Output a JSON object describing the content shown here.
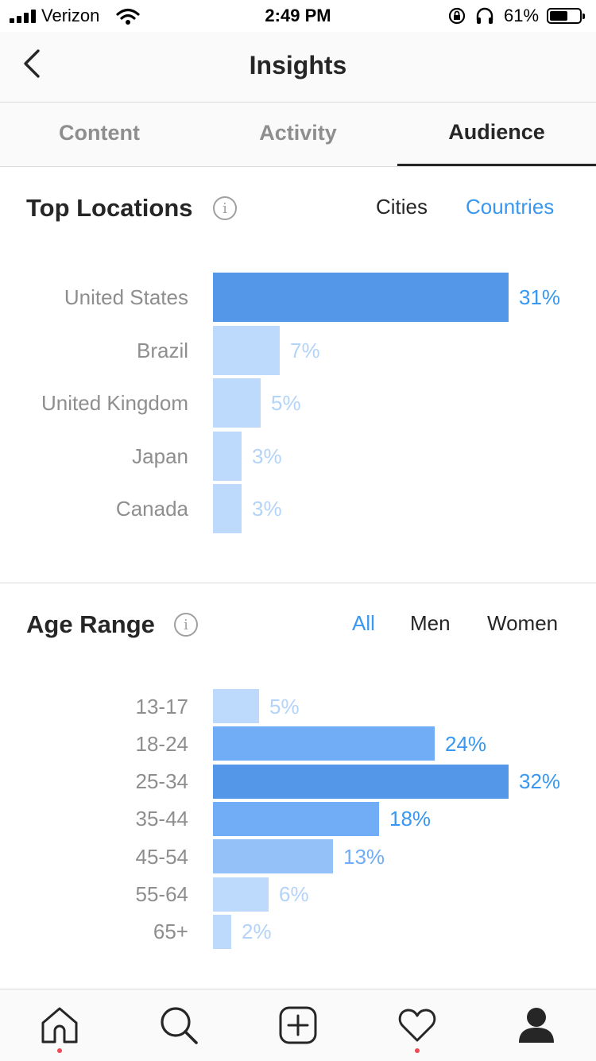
{
  "status_bar": {
    "carrier": "Verizon",
    "time": "2:49 PM",
    "battery_pct": "61%",
    "battery_level": 0.61,
    "icons": [
      "signal-icon",
      "wifi-icon",
      "rotation-lock-icon",
      "headphones-icon",
      "battery-icon"
    ]
  },
  "header": {
    "title": "Insights",
    "back_icon": "chevron-left-icon"
  },
  "tabs": [
    {
      "label": "Content",
      "active": false
    },
    {
      "label": "Activity",
      "active": false
    },
    {
      "label": "Audience",
      "active": true
    }
  ],
  "top_locations": {
    "title": "Top Locations",
    "info_glyph": "i",
    "filters": [
      {
        "label": "Cities",
        "selected": false
      },
      {
        "label": "Countries",
        "selected": true
      }
    ],
    "rows": [
      {
        "label": "United States",
        "pct_label": "31%",
        "value": 31
      },
      {
        "label": "Brazil",
        "pct_label": "7%",
        "value": 7
      },
      {
        "label": "United Kingdom",
        "pct_label": "5%",
        "value": 5
      },
      {
        "label": "Japan",
        "pct_label": "3%",
        "value": 3
      },
      {
        "label": "Canada",
        "pct_label": "3%",
        "value": 3
      }
    ]
  },
  "age_range": {
    "title": "Age Range",
    "info_glyph": "i",
    "filters": [
      {
        "label": "All",
        "selected": true
      },
      {
        "label": "Men",
        "selected": false
      },
      {
        "label": "Women",
        "selected": false
      }
    ],
    "rows": [
      {
        "label": "13-17",
        "pct_label": "5%",
        "value": 5
      },
      {
        "label": "18-24",
        "pct_label": "24%",
        "value": 24
      },
      {
        "label": "25-34",
        "pct_label": "32%",
        "value": 32
      },
      {
        "label": "35-44",
        "pct_label": "18%",
        "value": 18
      },
      {
        "label": "45-54",
        "pct_label": "13%",
        "value": 13
      },
      {
        "label": "55-64",
        "pct_label": "6%",
        "value": 6
      },
      {
        "label": "65+",
        "pct_label": "2%",
        "value": 2
      }
    ]
  },
  "bottom_nav": [
    {
      "icon": "home-icon",
      "notification_dot": true
    },
    {
      "icon": "search-icon",
      "notification_dot": false
    },
    {
      "icon": "add-post-icon",
      "notification_dot": false
    },
    {
      "icon": "heart-icon",
      "notification_dot": true
    },
    {
      "icon": "profile-icon",
      "notification_dot": false
    }
  ],
  "colors": {
    "accent": "#3897f0",
    "bar_max": "#5497e8",
    "bar_high": "#70adf6",
    "bar_mid": "#94c1f8",
    "bar_low": "#bdd9fb",
    "pct_light": "#b3d3f8",
    "notification": "#ed4956"
  }
}
